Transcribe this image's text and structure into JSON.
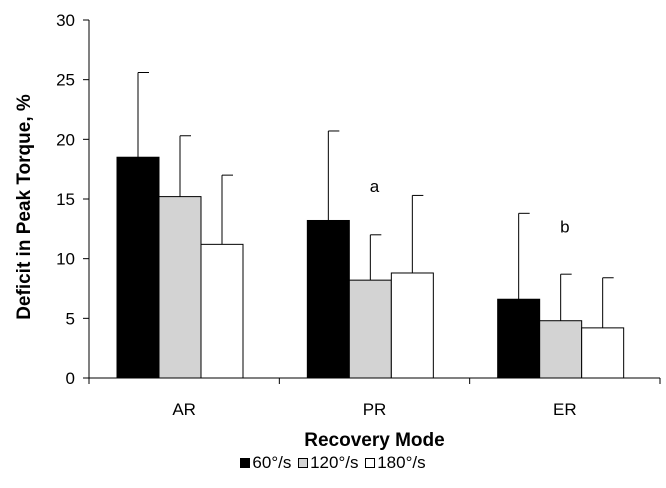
{
  "chart_data": {
    "type": "bar",
    "categories": [
      "AR",
      "PR",
      "ER"
    ],
    "xlabel": "Recovery Mode",
    "ylabel": "Deficit in Peak Torque, %",
    "ylim": [
      0,
      30
    ],
    "yticks": [
      0,
      5,
      10,
      15,
      20,
      25,
      30
    ],
    "grid": false,
    "legend_position": "bottom",
    "series": [
      {
        "name": "60°/s",
        "color": "#000000",
        "values": [
          18.5,
          13.2,
          6.6
        ],
        "errors": [
          7.1,
          7.5,
          7.2
        ]
      },
      {
        "name": "120°/s",
        "color": "#d3d3d3",
        "values": [
          15.2,
          8.2,
          4.8
        ],
        "errors": [
          5.1,
          3.8,
          3.9
        ]
      },
      {
        "name": "180°/s",
        "color": "#ffffff",
        "values": [
          11.2,
          8.8,
          4.2
        ],
        "errors": [
          5.8,
          6.5,
          4.2
        ]
      }
    ],
    "annotations": [
      {
        "text": "a",
        "category": "PR",
        "y": 15.6
      },
      {
        "text": "b",
        "category": "ER",
        "y": 12.2
      }
    ]
  }
}
